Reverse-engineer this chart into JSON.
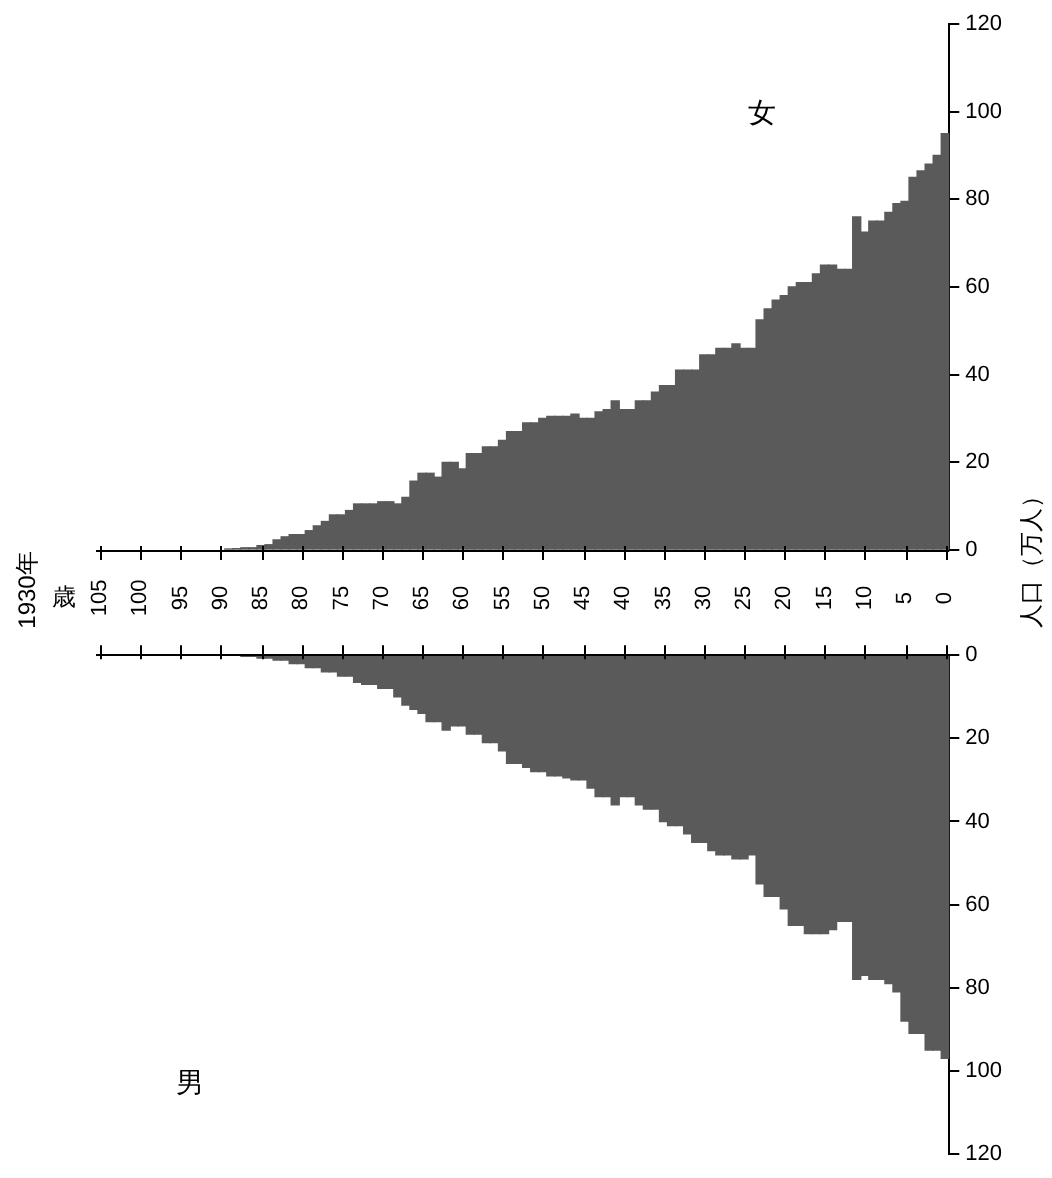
{
  "chart_data": [
    {
      "type": "bar",
      "title": "1930年",
      "xlabel": "歳",
      "ylabel": "人口（万人）",
      "categories": [
        "105",
        null,
        null,
        null,
        null,
        "100",
        null,
        null,
        null,
        null,
        "95",
        null,
        null,
        null,
        null,
        "90",
        null,
        null,
        null,
        null,
        "85",
        null,
        null,
        null,
        null,
        "80",
        null,
        null,
        null,
        null,
        "75",
        null,
        null,
        null,
        null,
        "70",
        null,
        null,
        null,
        null,
        "65",
        null,
        null,
        null,
        null,
        "60",
        null,
        null,
        null,
        null,
        "55",
        null,
        null,
        null,
        null,
        "50",
        null,
        null,
        null,
        null,
        "45",
        null,
        null,
        null,
        null,
        "40",
        null,
        null,
        null,
        null,
        "35",
        null,
        null,
        null,
        null,
        "30",
        null,
        null,
        null,
        null,
        "25",
        null,
        null,
        null,
        null,
        "20",
        null,
        null,
        null,
        null,
        "15",
        null,
        null,
        null,
        null,
        "10",
        null,
        null,
        null,
        null,
        "5",
        null,
        null,
        null,
        null,
        "0"
      ],
      "series": [
        {
          "name": "女",
          "color": "#5a5a5a",
          "values": [
            null,
            null,
            null,
            null,
            null,
            null,
            null,
            null,
            null,
            null,
            null,
            null,
            null,
            null,
            null,
            null,
            0.2,
            0.3,
            0.5,
            0.5,
            1,
            1.2,
            2.3,
            3,
            3.5,
            3.5,
            4.4,
            5.5,
            6.5,
            8,
            8,
            9,
            10.5,
            10.5,
            10.5,
            11,
            11,
            10.5,
            12,
            15.7,
            17.5,
            17.5,
            16.6,
            20,
            20,
            18.5,
            22,
            22,
            23.5,
            23.5,
            25,
            27,
            27,
            29,
            29,
            30,
            30.5,
            30.5,
            30.5,
            31,
            30,
            30,
            31.5,
            32,
            34,
            32,
            32,
            34,
            34,
            36,
            37.5,
            37.5,
            41,
            41,
            41,
            44.5,
            44.5,
            46,
            46,
            47,
            46,
            46,
            52.5,
            55,
            57,
            58,
            60,
            61,
            61,
            63,
            65,
            65,
            64,
            64,
            76,
            72.5,
            75,
            75,
            77,
            79,
            79.5,
            85,
            86.5,
            88,
            90,
            95
          ]
        }
      ],
      "ylim": [
        0,
        120
      ],
      "yticks": [
        0,
        20,
        40,
        60,
        80,
        100,
        120
      ]
    },
    {
      "type": "bar",
      "tick_labels": "y",
      "categories": [
        "105",
        null,
        null,
        null,
        null,
        "100",
        null,
        null,
        null,
        null,
        "95",
        null,
        null,
        null,
        null,
        "90",
        null,
        null,
        null,
        null,
        "85",
        null,
        null,
        null,
        null,
        "80",
        null,
        null,
        null,
        null,
        "75",
        null,
        null,
        null,
        null,
        "70",
        null,
        null,
        null,
        null,
        "65",
        null,
        null,
        null,
        null,
        "60",
        null,
        null,
        null,
        null,
        "55",
        null,
        null,
        null,
        null,
        "50",
        null,
        null,
        null,
        null,
        "45",
        null,
        null,
        null,
        null,
        "40",
        null,
        null,
        null,
        null,
        "35",
        null,
        null,
        null,
        null,
        "30",
        null,
        null,
        null,
        null,
        "25",
        null,
        null,
        null,
        null,
        "20",
        null,
        null,
        null,
        null,
        "15",
        null,
        null,
        null,
        null,
        "10",
        null,
        null,
        null,
        null,
        "5",
        null,
        null,
        null,
        null,
        "0"
      ],
      "series": [
        {
          "name": "男",
          "color": "#5a5a5a",
          "values": [
            null,
            null,
            null,
            null,
            null,
            null,
            null,
            null,
            null,
            null,
            null,
            null,
            null,
            null,
            null,
            null,
            null,
            null,
            0.3,
            0.3,
            0.7,
            0.7,
            1.2,
            1.2,
            2,
            2,
            3,
            3,
            4,
            4,
            5,
            5,
            6.5,
            7,
            7,
            8,
            8,
            10,
            12,
            13,
            14,
            16,
            16,
            18,
            17,
            17,
            19,
            19,
            21,
            21,
            23,
            26,
            26,
            27,
            28,
            28,
            29,
            29,
            29.5,
            30,
            30,
            32,
            34,
            34,
            36,
            34,
            34,
            36,
            37,
            37,
            40,
            41,
            41,
            43,
            45,
            45,
            47,
            48,
            48,
            49,
            49,
            48,
            55,
            58,
            58,
            61,
            65,
            65,
            67,
            67,
            67,
            66,
            64,
            64,
            78,
            77,
            78,
            78,
            79,
            81,
            88,
            91,
            91,
            95,
            95,
            97
          ]
        }
      ],
      "ylim": [
        120,
        0
      ],
      "yticks": [
        0,
        20,
        40,
        60,
        80,
        100,
        120
      ]
    }
  ]
}
